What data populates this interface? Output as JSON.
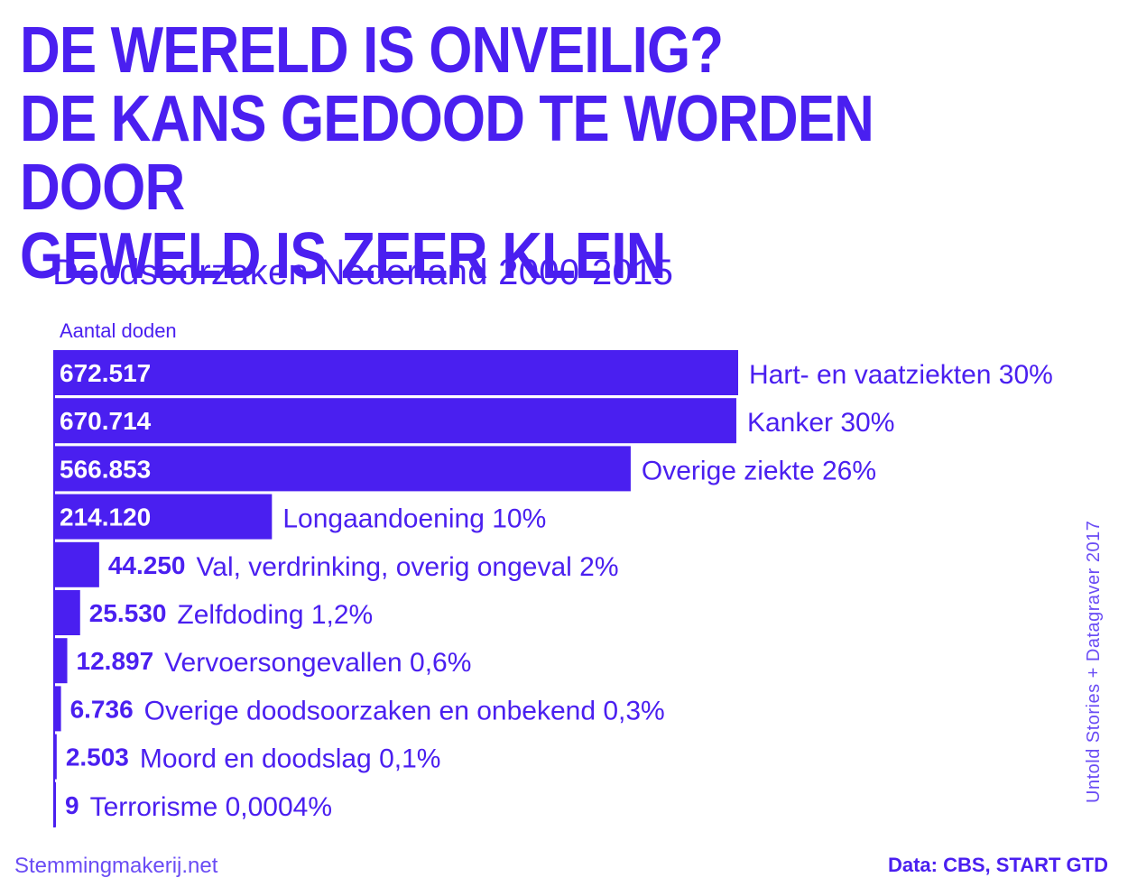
{
  "headline": {
    "line1": "DE WERELD IS ONVEILIG?",
    "line2": "DE KANS GEDOOD TE WORDEN DOOR",
    "line3": "GEWELD IS ZEER KLEIN"
  },
  "colors": {
    "accent": "#4a1ff0",
    "background": "#ffffff",
    "bar_text": "#ffffff"
  },
  "footer": {
    "site": "Stemmingmakerij.net",
    "source": "Data: CBS, START GTD",
    "credit": "Untold Stories + Datagraver 2017"
  },
  "chart_data": {
    "type": "bar",
    "orientation": "horizontal",
    "title": "Doodsoorzaken Nederland 2000-2015",
    "ylabel": "Aantal doden",
    "xlim": [
      0,
      672517
    ],
    "grid": false,
    "categories": [
      "Hart- en vaatziekten 30%",
      "Kanker 30%",
      "Overige ziekte 26%",
      "Longaandoening 10%",
      "Val, verdrinking, overig ongeval 2%",
      "Zelfdoding 1,2%",
      "Vervoersongevallen 0,6%",
      "Overige doodsoorzaken en onbekend 0,3%",
      "Moord en doodslag 0,1%",
      "Terrorisme 0,0004%"
    ],
    "values": [
      672517,
      670714,
      566853,
      214120,
      44250,
      25530,
      12897,
      6736,
      2503,
      9
    ],
    "value_labels": [
      "672.517",
      "670.714",
      "566.853",
      "214.120",
      "44.250",
      "25.530",
      "12.897",
      "6.736",
      "2.503",
      "9"
    ]
  }
}
